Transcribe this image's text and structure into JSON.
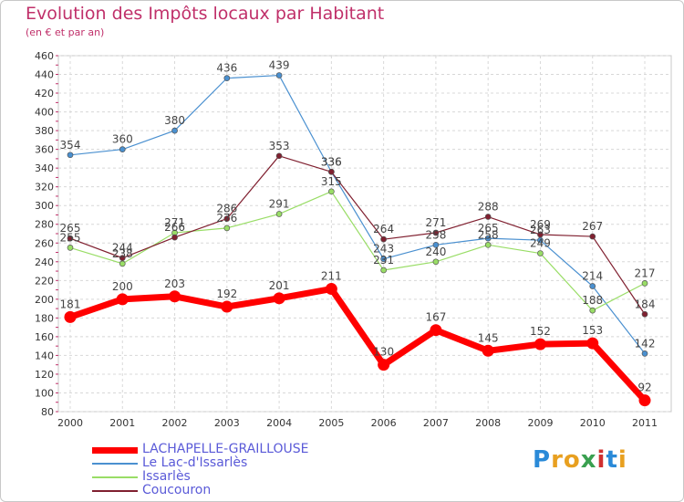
{
  "title": "Evolution des Impôts locaux par Habitant",
  "subtitle": "(en € et par an)",
  "logo": {
    "letters": [
      "P",
      "r",
      "o",
      "x",
      "i",
      "t",
      "i"
    ],
    "colors": [
      "#2a8ad8",
      "#e8a020",
      "#e8a020",
      "#3aa050",
      "#d03030",
      "#2a8ad8",
      "#e8a020"
    ]
  },
  "chart_data": {
    "type": "line",
    "title": "Evolution des Impôts locaux par Habitant",
    "subtitle": "(en € et par an)",
    "x": [
      "2000",
      "2001",
      "2002",
      "2003",
      "2004",
      "2005",
      "2006",
      "2007",
      "2008",
      "2009",
      "2010",
      "2011"
    ],
    "ylim": [
      80,
      460
    ],
    "yticks": [
      80,
      100,
      120,
      140,
      160,
      180,
      200,
      220,
      240,
      260,
      280,
      300,
      320,
      340,
      360,
      380,
      400,
      420,
      440,
      460
    ],
    "grid": true,
    "legend_position": "bottom-left",
    "series": [
      {
        "name": "LACHAPELLE-GRAILLOUSE",
        "color": "#ff0000",
        "values": [
          181,
          200,
          203,
          192,
          201,
          211,
          130,
          167,
          145,
          152,
          153,
          92
        ]
      },
      {
        "name": "Le Lac-d'Issarlès",
        "color": "#4a90d0",
        "values": [
          354,
          360,
          380,
          436,
          439,
          336,
          243,
          258,
          265,
          263,
          214,
          142
        ]
      },
      {
        "name": "Issarlès",
        "color": "#99dd66",
        "values": [
          255,
          238,
          271,
          276,
          291,
          315,
          231,
          240,
          258,
          249,
          188,
          217
        ]
      },
      {
        "name": "Coucouron",
        "color": "#802030",
        "values": [
          265,
          244,
          266,
          286,
          353,
          336,
          264,
          271,
          288,
          269,
          267,
          184
        ]
      }
    ]
  }
}
